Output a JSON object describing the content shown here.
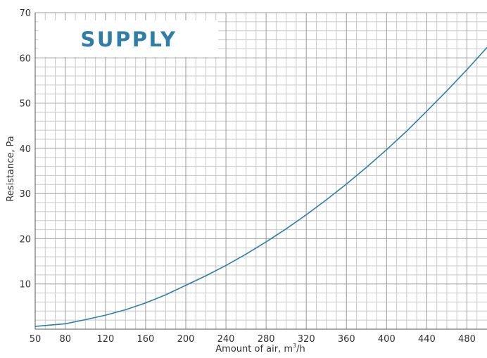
{
  "chart_data": {
    "type": "line",
    "title": "SUPPLY",
    "xlabel": "Amount of air, m",
    "xlabel_superscript": "3",
    "xlabel_suffix": "/h",
    "ylabel": "Resistance, Pa",
    "xlim": [
      50,
      500
    ],
    "ylim": [
      0,
      70
    ],
    "x_ticks": [
      50,
      80,
      120,
      160,
      200,
      240,
      280,
      320,
      360,
      400,
      440,
      480
    ],
    "y_ticks": [
      10,
      20,
      30,
      40,
      50,
      60,
      70
    ],
    "x_minor_step": 10,
    "y_minor_step": 2,
    "grid": true,
    "series": [
      {
        "color": "#2e7ea8",
        "x": [
          50,
          80,
          100,
          120,
          140,
          160,
          180,
          200,
          220,
          240,
          260,
          280,
          300,
          320,
          340,
          360,
          380,
          400,
          420,
          440,
          460,
          480,
          500
        ],
        "y": [
          0.6,
          1.2,
          2.1,
          3.1,
          4.3,
          5.8,
          7.6,
          9.7,
          11.8,
          14.1,
          16.6,
          19.3,
          22.2,
          25.3,
          28.6,
          32.1,
          35.8,
          39.7,
          43.8,
          48.2,
          52.7,
          57.4,
          62.3
        ]
      }
    ]
  }
}
